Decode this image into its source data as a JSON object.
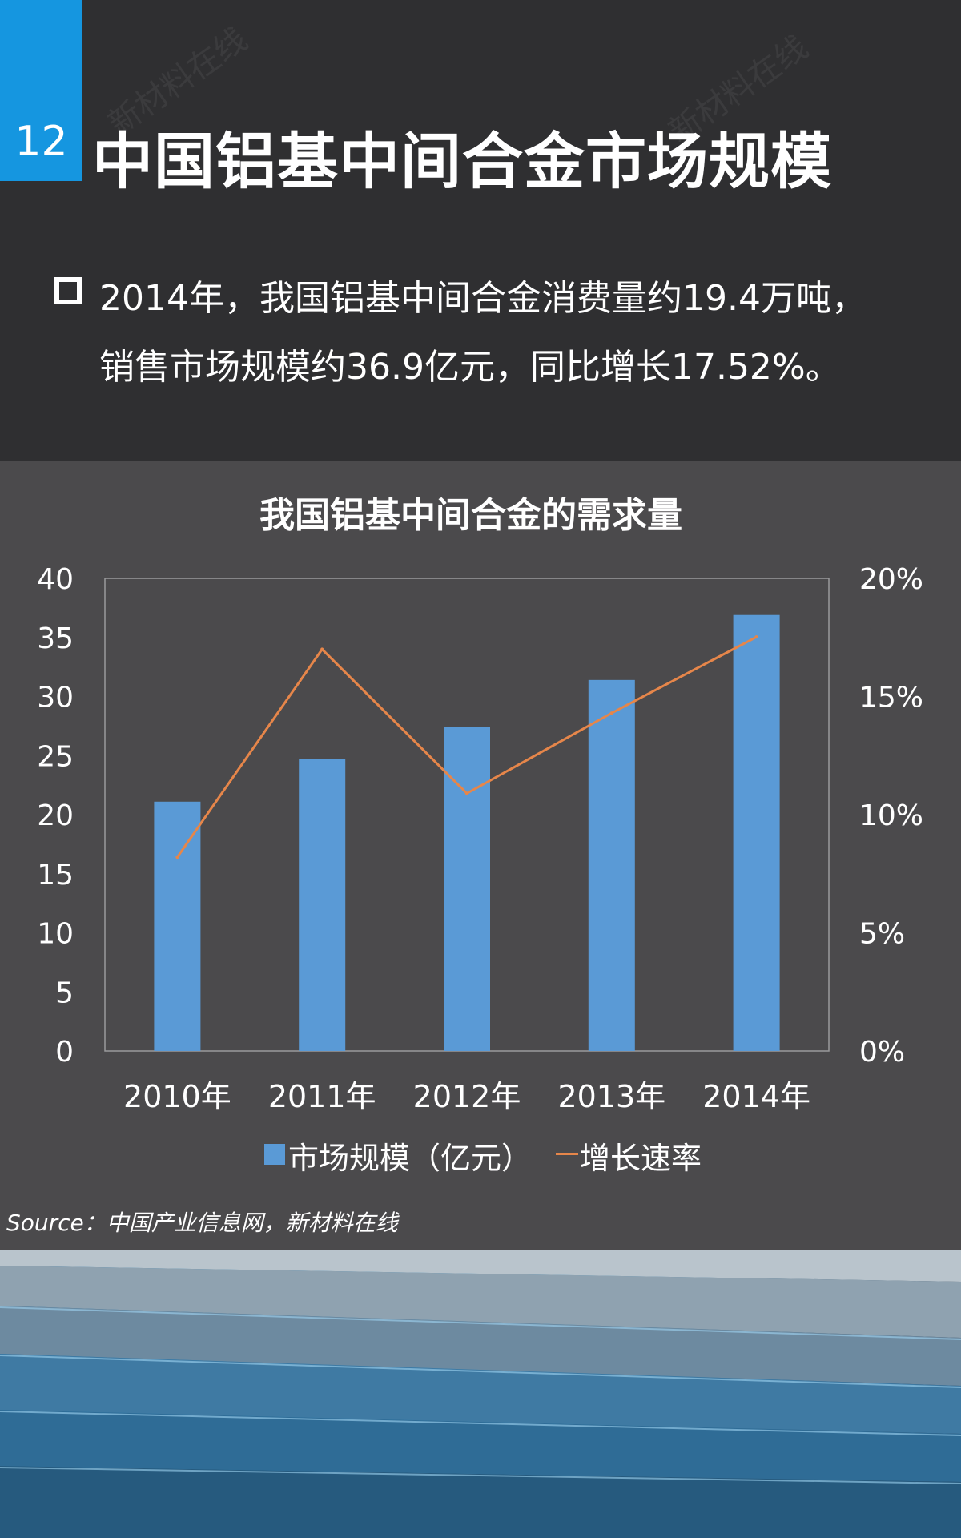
{
  "header": {
    "number": "12",
    "title": "中国铝基中间合金市场规模",
    "bullet_text": "2014年，我国铝基中间合金消费量约19.4万吨，销售市场规模约36.9亿元，同比增长17.52%。"
  },
  "source": "Source：中国产业信息网，新材料在线",
  "colors": {
    "bar": "#5a9ad6",
    "line": "#e6864a",
    "accent": "#1596e0"
  },
  "chart_data": {
    "type": "bar",
    "title": "我国铝基中间合金的需求量",
    "categories": [
      "2010年",
      "2011年",
      "2012年",
      "2013年",
      "2014年"
    ],
    "series": [
      {
        "name": "市场规模（亿元）",
        "type": "bar",
        "axis": "left",
        "values": [
          21.1,
          24.7,
          27.4,
          31.4,
          36.9
        ]
      },
      {
        "name": "增长速率",
        "type": "line",
        "axis": "right",
        "values": [
          8.2,
          17.0,
          10.9,
          14.3,
          17.52
        ]
      }
    ],
    "y_left": {
      "min": 0,
      "max": 40,
      "ticks": [
        "0",
        "5",
        "10",
        "15",
        "20",
        "25",
        "30",
        "35",
        "40"
      ]
    },
    "y_right": {
      "min": 0,
      "max": 20,
      "ticks": [
        "0%",
        "5%",
        "10%",
        "15%",
        "20%"
      ]
    },
    "grid": false,
    "legend": "bottom"
  }
}
